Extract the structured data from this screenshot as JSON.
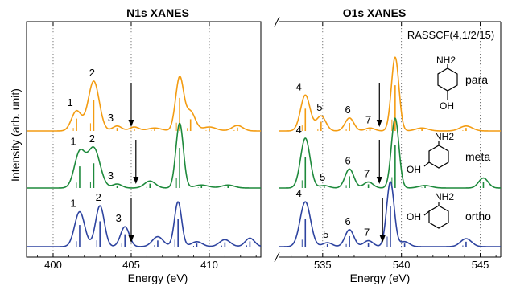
{
  "chart_data": [
    {
      "panel": "left",
      "type": "line",
      "title": "N1s XANES",
      "xlabel": "Energy (eV)",
      "ylabel": "Intensity (arb. unit)",
      "xlim": [
        398.3,
        413.3
      ],
      "xticks": [
        400,
        405,
        410
      ],
      "grid": "vertical dotted",
      "series": [
        {
          "name": "para",
          "color": "#f39c12",
          "peaks": [
            [
              401.5,
              0.4,
              0.32,
              "1"
            ],
            [
              402.6,
              1.0,
              0.35,
              "2"
            ],
            [
              404.1,
              0.1,
              0.3,
              "3"
            ],
            [
              405.2,
              0.08,
              0.3,
              ""
            ],
            [
              406.5,
              0.06,
              0.45,
              ""
            ],
            [
              408.1,
              1.07,
              0.26,
              ""
            ],
            [
              408.8,
              0.38,
              0.3,
              ""
            ],
            [
              410.0,
              0.08,
              0.45,
              ""
            ],
            [
              411.8,
              0.11,
              0.35,
              ""
            ]
          ],
          "arrow_x": 405.0
        },
        {
          "name": "meta",
          "color": "#1e8a3c",
          "peaks": [
            [
              401.7,
              0.7,
              0.34,
              "1"
            ],
            [
              402.6,
              0.8,
              0.4,
              "2"
            ],
            [
              404.1,
              0.08,
              0.3,
              "3"
            ],
            [
              406.2,
              0.14,
              0.35,
              ""
            ],
            [
              408.1,
              1.3,
              0.24,
              ""
            ],
            [
              409.5,
              0.06,
              0.45,
              ""
            ],
            [
              411.2,
              0.06,
              0.4,
              ""
            ]
          ],
          "arrow_x": 405.3
        },
        {
          "name": "ortho",
          "color": "#2e44a0",
          "peaks": [
            [
              401.7,
              0.7,
              0.32,
              "1"
            ],
            [
              403.0,
              0.82,
              0.28,
              "2"
            ],
            [
              404.6,
              0.4,
              0.28,
              "3"
            ],
            [
              406.7,
              0.2,
              0.35,
              ""
            ],
            [
              408.0,
              0.9,
              0.23,
              ""
            ],
            [
              409.2,
              0.1,
              0.35,
              ""
            ],
            [
              411.0,
              0.14,
              0.35,
              ""
            ],
            [
              412.6,
              0.17,
              0.3,
              ""
            ]
          ],
          "arrow_x": 405.0
        }
      ]
    },
    {
      "panel": "right",
      "type": "line",
      "title": "O1s XANES",
      "xlabel": "Energy (eV)",
      "annotation": "RASSCF(4,1/2/15)",
      "xlim": [
        532.2,
        546.3
      ],
      "xticks": [
        535,
        540,
        545
      ],
      "grid": "vertical dotted",
      "series": [
        {
          "name": "para",
          "color": "#f39c12",
          "peaks": [
            [
              533.9,
              0.72,
              0.3,
              "4"
            ],
            [
              534.9,
              0.3,
              0.3,
              "5"
            ],
            [
              536.7,
              0.26,
              0.28,
              "6"
            ],
            [
              538.0,
              0.06,
              0.3,
              "7"
            ],
            [
              539.6,
              1.48,
              0.24,
              ""
            ],
            [
              541.3,
              0.06,
              0.4,
              ""
            ],
            [
              544.1,
              0.1,
              0.4,
              ""
            ]
          ],
          "arrow_x": 538.6
        },
        {
          "name": "meta",
          "color": "#1e8a3c",
          "peaks": [
            [
              533.9,
              1.0,
              0.3,
              "4"
            ],
            [
              535.1,
              0.05,
              0.3,
              "5"
            ],
            [
              536.7,
              0.38,
              0.28,
              "6"
            ],
            [
              537.9,
              0.12,
              0.3,
              "7"
            ],
            [
              539.6,
              1.4,
              0.24,
              ""
            ],
            [
              541.5,
              0.05,
              0.4,
              ""
            ],
            [
              545.2,
              0.2,
              0.3,
              ""
            ]
          ],
          "arrow_x": 538.6
        },
        {
          "name": "ortho",
          "color": "#2e44a0",
          "peaks": [
            [
              533.9,
              0.9,
              0.33,
              "4"
            ],
            [
              535.3,
              0.08,
              0.3,
              "5"
            ],
            [
              536.7,
              0.34,
              0.28,
              "6"
            ],
            [
              537.9,
              0.12,
              0.3,
              "7"
            ],
            [
              539.3,
              1.3,
              0.24,
              ""
            ],
            [
              540.2,
              0.1,
              0.3,
              ""
            ],
            [
              544.1,
              0.16,
              0.35,
              ""
            ]
          ],
          "arrow_x": 538.8
        }
      ]
    }
  ],
  "molecules": [
    {
      "label": "para",
      "substituents": [
        "NH2",
        "OH"
      ]
    },
    {
      "label": "meta",
      "substituents": [
        "NH2",
        "OH"
      ]
    },
    {
      "label": "ortho",
      "substituents": [
        "NH2",
        "OH"
      ]
    }
  ]
}
